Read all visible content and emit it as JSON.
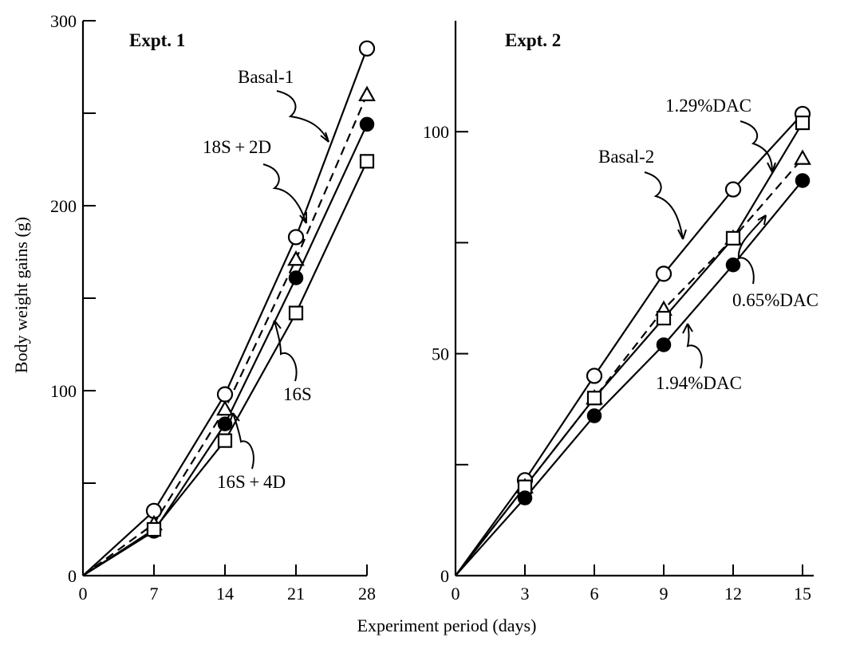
{
  "figure": {
    "xlabel": "Experiment period (days)",
    "ylabel": "Body weight gains (g)"
  },
  "chart_data": [
    {
      "type": "line",
      "title": "Expt. 1",
      "x": [
        0,
        7,
        14,
        21,
        28
      ],
      "xlim": [
        0,
        28
      ],
      "ylim": [
        0,
        300
      ],
      "xticks": [
        0,
        7,
        14,
        21,
        28
      ],
      "yticks": [
        0,
        100,
        200,
        300
      ],
      "xlabel": "Experiment period (days)",
      "ylabel": "Body weight gains (g)",
      "series": [
        {
          "name": "Basal-1",
          "marker": "open-circle",
          "dashed": false,
          "values": [
            0,
            35,
            98,
            183,
            285
          ]
        },
        {
          "name": "18S+2D",
          "marker": "open-triangle",
          "dashed": true,
          "values": [
            0,
            28,
            90,
            171,
            260
          ]
        },
        {
          "name": "16S+4D",
          "marker": "filled-circle",
          "dashed": false,
          "values": [
            0,
            24,
            82,
            161,
            244
          ]
        },
        {
          "name": "16S",
          "marker": "open-square",
          "dashed": false,
          "values": [
            0,
            25,
            73,
            142,
            224
          ]
        }
      ],
      "annotations": [
        {
          "text": "Basal-1"
        },
        {
          "text": "18S + 2D"
        },
        {
          "text": "16S"
        },
        {
          "text": "16S + 4D"
        }
      ]
    },
    {
      "type": "line",
      "title": "Expt. 2",
      "x": [
        0,
        3,
        6,
        9,
        12,
        15
      ],
      "xlim": [
        0,
        15
      ],
      "ylim": [
        0,
        125
      ],
      "xticks": [
        0,
        3,
        6,
        9,
        12,
        15
      ],
      "yticks": [
        0,
        50,
        100
      ],
      "xlabel": "Experiment period (days)",
      "ylabel": "Body weight gains (g)",
      "series": [
        {
          "name": "Basal-2",
          "marker": "open-circle",
          "dashed": false,
          "values": [
            0,
            21.5,
            45,
            68,
            87,
            104
          ]
        },
        {
          "name": "0.65%DAC",
          "marker": "open-triangle",
          "dashed": true,
          "values": [
            0,
            20,
            40,
            60,
            76,
            94
          ]
        },
        {
          "name": "1.29%DAC",
          "marker": "open-square",
          "dashed": false,
          "values": [
            0,
            20,
            40,
            58,
            76,
            102
          ]
        },
        {
          "name": "1.94%DAC",
          "marker": "filled-circle",
          "dashed": false,
          "values": [
            0,
            17.5,
            36,
            52,
            70,
            89
          ]
        }
      ],
      "annotations": [
        {
          "text": "1.29%DAC"
        },
        {
          "text": "Basal-2"
        },
        {
          "text": "0.65%DAC"
        },
        {
          "text": "1.94%DAC"
        }
      ]
    }
  ]
}
